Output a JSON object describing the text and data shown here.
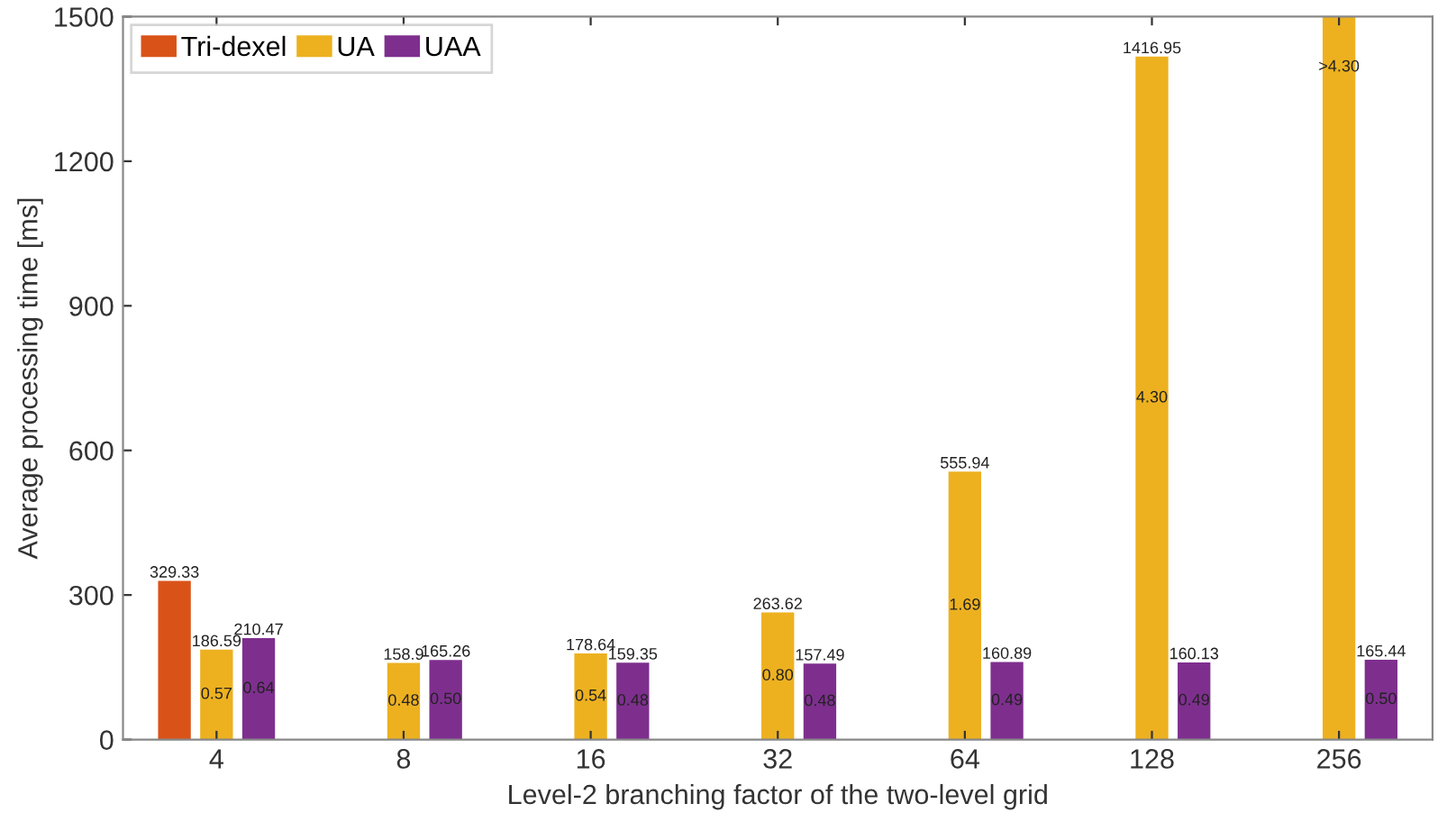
{
  "chart_data": {
    "type": "bar",
    "xlabel": "Level-2 branching factor of the two-level grid",
    "ylabel": "Average processing time [ms]",
    "categories": [
      "4",
      "8",
      "16",
      "32",
      "64",
      "128",
      "256"
    ],
    "series": [
      {
        "name": "Tri-dexel",
        "color": "#d95319",
        "values": [
          329.33,
          null,
          null,
          null,
          null,
          null,
          null
        ],
        "value_labels": [
          "329.33",
          null,
          null,
          null,
          null,
          null,
          null
        ]
      },
      {
        "name": "UA",
        "color": "#edb120",
        "values": [
          186.59,
          158.9,
          178.64,
          263.62,
          555.94,
          1416.95,
          1500
        ],
        "value_labels": [
          "186.59",
          "158.9",
          "178.64",
          "263.62",
          "555.94",
          "1416.95",
          null
        ]
      },
      {
        "name": "UAA",
        "color": "#7e2f8e",
        "values": [
          210.47,
          165.26,
          159.35,
          157.49,
          160.89,
          160.13,
          165.44
        ],
        "value_labels": [
          "210.47",
          "165.26",
          "159.35",
          "157.49",
          "160.89",
          "160.13",
          "165.44"
        ]
      }
    ],
    "annotations": [
      "0.57",
      "0.64",
      "0.48",
      "0.50",
      "0.54",
      "0.48",
      "0.80",
      "0.48",
      "1.69",
      "0.49",
      "4.30",
      "0.49",
      ">4.30",
      "0.50"
    ],
    "ylim": [
      0,
      1500
    ],
    "yticks": [
      0,
      300,
      600,
      900,
      1200,
      1500
    ],
    "legend": "top left",
    "grid": false
  }
}
